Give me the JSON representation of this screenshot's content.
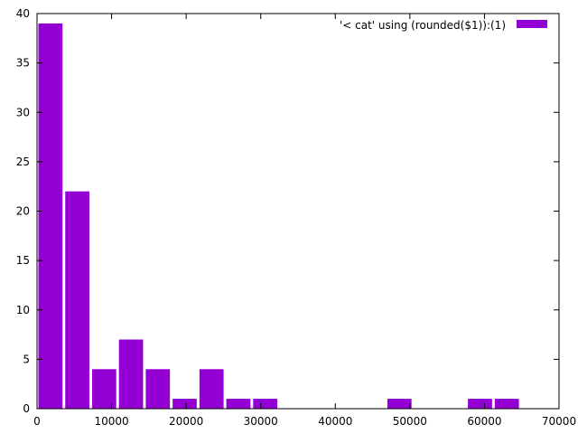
{
  "chart_data": {
    "type": "bar",
    "title": "",
    "xlabel": "",
    "ylabel": "",
    "xlim": [
      0,
      70000
    ],
    "ylim": [
      0,
      40
    ],
    "xticks": [
      0,
      10000,
      20000,
      30000,
      40000,
      50000,
      60000,
      70000
    ],
    "yticks": [
      0,
      5,
      10,
      15,
      20,
      25,
      30,
      35,
      40
    ],
    "bin_width": 3600,
    "grid": false,
    "legend_position": "top-right",
    "series": [
      {
        "name": "'< cat' using (rounded($1)):(1)",
        "color": "#9400d3",
        "points": [
          {
            "x": 1800,
            "y": 39
          },
          {
            "x": 5400,
            "y": 22
          },
          {
            "x": 9000,
            "y": 4
          },
          {
            "x": 12600,
            "y": 7
          },
          {
            "x": 16200,
            "y": 4
          },
          {
            "x": 19800,
            "y": 1
          },
          {
            "x": 23400,
            "y": 4
          },
          {
            "x": 27000,
            "y": 1
          },
          {
            "x": 30600,
            "y": 1
          },
          {
            "x": 48600,
            "y": 1
          },
          {
            "x": 59400,
            "y": 1
          },
          {
            "x": 63000,
            "y": 1
          }
        ]
      }
    ]
  }
}
